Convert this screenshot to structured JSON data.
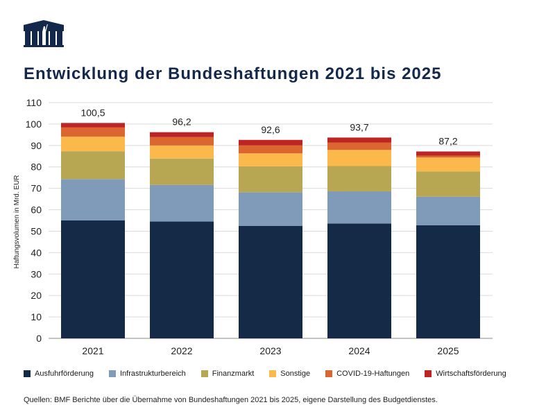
{
  "title": "Entwicklung der Bundeshaftungen 2021 bis 2025",
  "source": "Quellen: BMF Berichte über die Übernahme von Bundeshaftungen 2021 bis 2025, eigene Darstellung des Budgetdienstes.",
  "chart_data": {
    "type": "bar",
    "stacked": true,
    "title": "Entwicklung der Bundeshaftungen 2021 bis 2025",
    "ylabel": "Haftungsvolumen  in Mrd. EUR",
    "xlabel": "",
    "ylim": [
      0,
      110
    ],
    "yticks": [
      0,
      10,
      20,
      30,
      40,
      50,
      60,
      70,
      80,
      90,
      100,
      110
    ],
    "grid": true,
    "legend_position": "bottom",
    "categories": [
      "2021",
      "2022",
      "2023",
      "2024",
      "2025"
    ],
    "totals": [
      "100,5",
      "96,2",
      "92,6",
      "93,7",
      "87,2"
    ],
    "series": [
      {
        "name": "Ausfuhrförderung",
        "color": "#152a47",
        "values": [
          55.0,
          54.5,
          52.5,
          53.6,
          52.8
        ]
      },
      {
        "name": "Infrastrukturbereich",
        "color": "#7f9bb9",
        "values": [
          19.3,
          17.1,
          15.7,
          15.0,
          13.3
        ]
      },
      {
        "name": "Finanzmarkt",
        "color": "#b8a752",
        "values": [
          13.0,
          12.3,
          12.1,
          11.8,
          11.8
        ]
      },
      {
        "name": "Sonstige",
        "color": "#fbb94b",
        "values": [
          6.8,
          6.1,
          6.0,
          7.5,
          6.5
        ]
      },
      {
        "name": "COVID-19-Haftungen",
        "color": "#dc6630",
        "values": [
          4.3,
          3.9,
          3.8,
          3.5,
          0.8
        ]
      },
      {
        "name": "Wirtschaftsförderung",
        "color": "#bd2424",
        "values": [
          2.1,
          2.3,
          2.5,
          2.3,
          2.0
        ]
      }
    ]
  }
}
